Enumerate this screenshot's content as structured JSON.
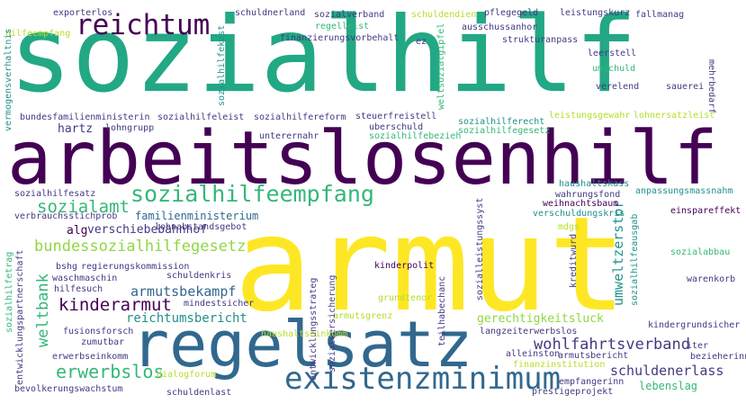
{
  "words": [
    {
      "id": "sozialhilf",
      "text": "sozialhilf",
      "color": "#22a884"
    },
    {
      "id": "arbeitslosenhilf",
      "text": "arbeitslosenhilf",
      "color": "#440154"
    },
    {
      "id": "armut",
      "text": "armut",
      "color": "#fde725"
    },
    {
      "id": "regelsatz",
      "text": "regelsatz",
      "color": "#31688e"
    },
    {
      "id": "reichtum",
      "text": "reichtum",
      "color": "#440154"
    },
    {
      "id": "sozialhilfeempfang",
      "text": "sozialhilfeempfang",
      "color": "#35b779"
    },
    {
      "id": "existenzminimum",
      "text": "existenzminimum",
      "color": "#31688e"
    },
    {
      "id": "sozialamt",
      "text": "sozialamt",
      "color": "#35b779"
    },
    {
      "id": "bundessozialhilfegesetz",
      "text": "bundessozialhilfegesetz",
      "color": "#90d743"
    },
    {
      "id": "kinderarmut",
      "text": "kinderarmut",
      "color": "#440154"
    },
    {
      "id": "armutsbekampf",
      "text": "armutsbekampf",
      "color": "#31688e"
    },
    {
      "id": "erwerbslos",
      "text": "erwerbslos",
      "color": "#35b779"
    },
    {
      "id": "weltbank",
      "text": "weltbank",
      "color": "#35b779"
    },
    {
      "id": "wohlfahrtsverband",
      "text": "wohlfahrtsverband",
      "color": "#443983"
    },
    {
      "id": "schuldenerlass",
      "text": "schuldenerlass",
      "color": "#443983"
    },
    {
      "id": "reichtumsbericht",
      "text": "reichtumsbericht",
      "color": "#21918c"
    },
    {
      "id": "familienministerium",
      "text": "familienministerium",
      "color": "#31688e"
    },
    {
      "id": "umweltzerstor",
      "text": "umweltzerstor",
      "color": "#21918c"
    },
    {
      "id": "gerechtigkeitsluck",
      "text": "gerechtigkeitsluck",
      "color": "#90d743"
    },
    {
      "id": "verschiebebahnhof",
      "text": "verschiebebahnhof",
      "color": "#443983"
    },
    {
      "id": "alg",
      "text": "alg",
      "color": "#440154"
    },
    {
      "id": "hartz",
      "text": "hartz",
      "color": "#443983"
    },
    {
      "id": "lebenslag",
      "text": "lebenslag",
      "color": "#35b779"
    },
    {
      "id": "sozialhilfesatz",
      "text": "sozialhilfesatz",
      "color": "#443983"
    },
    {
      "id": "schuldnerland",
      "text": "schuldnerland",
      "color": "#443983"
    },
    {
      "id": "exporterlos",
      "text": "exporterlos",
      "color": "#443983"
    },
    {
      "id": "sozialverband",
      "text": "sozialverband",
      "color": "#443983"
    },
    {
      "id": "schuldendienst",
      "text": "schuldendien",
      "color": "#b5de2b"
    },
    {
      "id": "pflegegeld",
      "text": "pflegegeld",
      "color": "#443983"
    },
    {
      "id": "leistungskurz",
      "text": "leistungskurz",
      "color": "#443983"
    },
    {
      "id": "fallmanag",
      "text": "fallmanag",
      "color": "#443983"
    },
    {
      "id": "hilfeempfang",
      "text": "hilfeempfang",
      "color": "#b5de2b"
    },
    {
      "id": "sozialhilfekost",
      "text": "sozialhilfekost",
      "color": "#21918c"
    },
    {
      "id": "regelleist",
      "text": "regelleist",
      "color": "#35b779"
    },
    {
      "id": "ausschussanhor",
      "text": "ausschussanhor",
      "color": "#443983"
    },
    {
      "id": "strukturanpass",
      "text": "strukturanpass",
      "color": "#443983"
    },
    {
      "id": "finanzierungsvorbehalt",
      "text": "finanzierungsvorbehalt",
      "color": "#443983"
    },
    {
      "id": "ez",
      "text": "ez",
      "color": "#443983"
    },
    {
      "id": "weltsozialgipfel",
      "text": "weltsozialgipfel",
      "color": "#35b779"
    },
    {
      "id": "leerstell",
      "text": "leerstell",
      "color": "#443983"
    },
    {
      "id": "umschuld",
      "text": "umschuld",
      "color": "#35b779"
    },
    {
      "id": "verelend",
      "text": "verelend",
      "color": "#443983"
    },
    {
      "id": "sauerei",
      "text": "sauerei",
      "color": "#443983"
    },
    {
      "id": "mehrbedarf",
      "text": "mehrbedarf",
      "color": "#443983"
    },
    {
      "id": "vermogensverhaltnis",
      "text": "vermogensverhaltnis",
      "color": "#21918c"
    },
    {
      "id": "bundesfamilienministerin",
      "text": "bundesfamilienministerin",
      "color": "#443983"
    },
    {
      "id": "sozialhilfeleist",
      "text": "sozialhilfeleist",
      "color": "#443983"
    },
    {
      "id": "sozialhilfereform",
      "text": "sozialhilfereform",
      "color": "#443983"
    },
    {
      "id": "steuerfreistell",
      "text": "steuerfreistell",
      "color": "#443983"
    },
    {
      "id": "uberschuld",
      "text": "uberschuld",
      "color": "#443983"
    },
    {
      "id": "sozialhilfebezieh",
      "text": "sozialhilfebezieh",
      "color": "#35b779"
    },
    {
      "id": "sozialhilferecht",
      "text": "sozialhilferecht",
      "color": "#21918c"
    },
    {
      "id": "sozialhilfegesetz",
      "text": "sozialhilfegesetz",
      "color": "#35b779"
    },
    {
      "id": "leistungsgewahr",
      "text": "leistungsgewahr",
      "color": "#b5de2b"
    },
    {
      "id": "lohnersatzleist",
      "text": "lohnersatzleist",
      "color": "#b5de2b"
    },
    {
      "id": "lohngrupp",
      "text": "lohngrupp",
      "color": "#443983"
    },
    {
      "id": "unterernahr",
      "text": "unterernahr",
      "color": "#443983"
    },
    {
      "id": "haushaltskass",
      "text": "haushaltskass",
      "color": "#21918c"
    },
    {
      "id": "wahrungsfond",
      "text": "wahrungsfond",
      "color": "#443983"
    },
    {
      "id": "anpassungsmassnahm",
      "text": "anpassungsmassnahm",
      "color": "#21918c"
    },
    {
      "id": "weihnachtsbaum",
      "text": "weihnachtsbaum",
      "color": "#440154"
    },
    {
      "id": "einspareffekt",
      "text": "einspareffekt",
      "color": "#440154"
    },
    {
      "id": "verschuldungskris",
      "text": "verschuldungskris",
      "color": "#21918c"
    },
    {
      "id": "verbrauchsstichprob",
      "text": "verbrauchsstichprob",
      "color": "#443983"
    },
    {
      "id": "lohnabstandsgebot",
      "text": "lohnabstandsgebot",
      "color": "#443983"
    },
    {
      "id": "mdgs",
      "text": "mdgs",
      "color": "#b5de2b"
    },
    {
      "id": "kreditwurd",
      "text": "kreditwurd",
      "color": "#443983"
    },
    {
      "id": "sozialhilfeausgab",
      "text": "sozialhilfeausgab",
      "color": "#21918c"
    },
    {
      "id": "sozialabbau",
      "text": "sozialabbau",
      "color": "#35b779"
    },
    {
      "id": "sozialleistungssyst",
      "text": "sozialleistungssyst",
      "color": "#443983"
    },
    {
      "id": "bshg",
      "text": "bshg",
      "color": "#443983"
    },
    {
      "id": "regierungskommission",
      "text": "regierungskommission",
      "color": "#443983"
    },
    {
      "id": "schuldenkris",
      "text": "schuldenkris",
      "color": "#443983"
    },
    {
      "id": "waschmaschin",
      "text": "waschmaschin",
      "color": "#443983"
    },
    {
      "id": "hilfesuch",
      "text": "hilfesuch",
      "color": "#443983"
    },
    {
      "id": "sozialhilfetrag",
      "text": "sozialhilfetrag",
      "color": "#35b779"
    },
    {
      "id": "entwicklungspartnerschaft",
      "text": "entwicklungspartnerschaft",
      "color": "#443983"
    },
    {
      "id": "kinderpolit",
      "text": "kinderpolit",
      "color": "#440154"
    },
    {
      "id": "warenkorb",
      "text": "warenkorb",
      "color": "#443983"
    },
    {
      "id": "entwicklungsstrateg",
      "text": "entwicklungsstrateg",
      "color": "#443983"
    },
    {
      "id": "grundtenor",
      "text": "grundtenor",
      "color": "#b5de2b"
    },
    {
      "id": "teilhabechanc",
      "text": "teilhabechanc",
      "color": "#443983"
    },
    {
      "id": "mindestsicher",
      "text": "mindestsicher",
      "color": "#443983"
    },
    {
      "id": "kindergrundsicher",
      "text": "kindergrundsicher",
      "color": "#443983"
    },
    {
      "id": "fusionsforsch",
      "text": "fusionsforsch",
      "color": "#443983"
    },
    {
      "id": "zumutbar",
      "text": "zumutbar",
      "color": "#443983"
    },
    {
      "id": "erwerbseinkomm",
      "text": "erwerbseinkomm",
      "color": "#443983"
    },
    {
      "id": "armutsgrenz",
      "text": "armutsgrenz",
      "color": "#b5de2b"
    },
    {
      "id": "sozialversicherung",
      "text": "sozialversicherung",
      "color": "#443983"
    },
    {
      "id": "langzeiterwerbslos",
      "text": "langzeiterwerbslos",
      "color": "#443983"
    },
    {
      "id": "haushaltseinkomm",
      "text": "haushaltseinkomm",
      "color": "#b5de2b"
    },
    {
      "id": "iter",
      "text": "iter",
      "color": "#443983"
    },
    {
      "id": "alleinston",
      "text": "alleinston",
      "color": "#443983"
    },
    {
      "id": "armutsbericht",
      "text": "armutsbericht",
      "color": "#443983"
    },
    {
      "id": "bezieherinn",
      "text": "bezieherinn",
      "color": "#443983"
    },
    {
      "id": "finanzinstitution",
      "text": "finanzinstitution",
      "color": "#b5de2b"
    },
    {
      "id": "dialogforum",
      "text": "dialogforum",
      "color": "#b5de2b"
    },
    {
      "id": "bevolkerungswachstum",
      "text": "bevolkerungswachstum",
      "color": "#443983"
    },
    {
      "id": "empfangerinn",
      "text": "empfangerinn",
      "color": "#443983"
    },
    {
      "id": "prestigeprojekt",
      "text": "prestigeprojekt",
      "color": "#443983"
    },
    {
      "id": "schuldenlast",
      "text": "schuldenlast",
      "color": "#443983"
    }
  ]
}
